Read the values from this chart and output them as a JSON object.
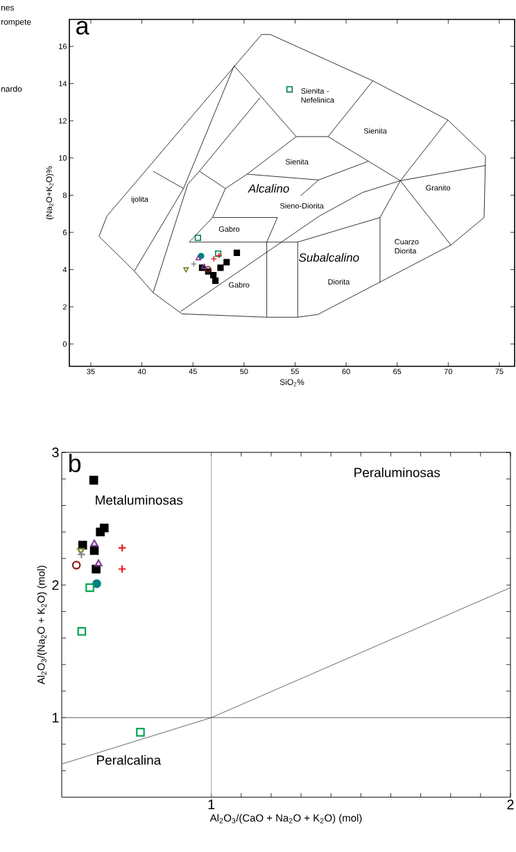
{
  "chart_data": [
    {
      "type": "scatter",
      "title": "a",
      "xlabel": "SiO$_{2}$%",
      "ylabel": "(Na$_{2}$O+K$_{2}$O)%",
      "xlim": [
        32.9,
        76.5
      ],
      "ylim": [
        -1.2,
        17.45
      ],
      "xticks": [
        35,
        40,
        45,
        50,
        55,
        60,
        65,
        70,
        75
      ],
      "yticks": [
        0,
        2,
        4,
        6,
        8,
        10,
        12,
        14,
        16
      ],
      "series": [
        {
          "type": "line",
          "color": "#000000",
          "x": [
            35.81,
            36.58,
            51.72,
            52.57,
            62.62,
            69.97,
            73.65,
            null,
            73.51,
            73.65,
            null,
            35.81,
            39.26,
            41.1,
            43.93,
            52.23,
            55.26,
            57.24,
            70.26,
            73.51,
            null,
            39.26,
            44.08,
            49.03,
            null,
            41.1,
            44.5,
            45.63,
            51.58,
            null,
            41.1,
            44.08,
            null,
            45.63,
            48.18,
            null,
            49.03,
            55.12,
            58.23,
            62.62,
            null,
            58.23,
            65.31,
            69.97,
            null,
            65.31,
            73.65,
            null,
            65.31,
            70.26,
            null,
            43.79,
            57.38,
            61.62,
            65.31,
            null,
            44.64,
            55.26,
            63.32,
            65.31,
            null,
            63.32,
            63.32,
            null,
            52.23,
            52.23,
            null,
            55.26,
            55.26,
            null,
            46.92,
            53.27,
            null,
            52.23,
            53.27,
            null,
            44.64,
            46.92,
            48.18,
            50.3,
            55.12,
            null,
            50.3,
            57.32,
            62.19,
            null,
            55.54,
            57.32
          ],
          "values": [
            5.79,
            6.88,
            16.64,
            16.64,
            14.15,
            12.04,
            10.1,
            null,
            6.8,
            10.1,
            null,
            5.79,
            3.92,
            2.76,
            1.62,
            1.44,
            1.44,
            1.59,
            5.32,
            6.8,
            null,
            3.92,
            8.36,
            14.96,
            null,
            2.76,
            8.59,
            9.29,
            13.25,
            null,
            9.29,
            8.36,
            null,
            9.29,
            8.36,
            null,
            14.96,
            11.15,
            11.15,
            14.15,
            null,
            11.15,
            8.78,
            12.04,
            null,
            8.78,
            9.6,
            null,
            8.78,
            5.32,
            null,
            1.75,
            6.88,
            8.15,
            8.78,
            null,
            5.48,
            5.48,
            6.8,
            8.78,
            null,
            3.3,
            6.8,
            null,
            1.44,
            5.48,
            null,
            1.44,
            5.48,
            null,
            6.8,
            6.8,
            null,
            5.48,
            6.8,
            null,
            5.48,
            6.8,
            8.36,
            9.13,
            11.15,
            null,
            9.13,
            8.82,
            9.83,
            null,
            7.97,
            8.82
          ]
        },
        {
          "color": "#00804a",
          "marker": "square_open",
          "x": [
            54.46,
            45.49,
            47.47
          ],
          "values": [
            13.69,
            5.71,
            4.86
          ]
        },
        {
          "color": "#000000",
          "marker": "square",
          "x": [
            49.3,
            48.3,
            47.7,
            47.2,
            47.0,
            46.5,
            45.9
          ],
          "values": [
            4.9,
            4.4,
            4.1,
            3.4,
            3.7,
            3.9,
            4.1
          ]
        },
        {
          "color": "#ed1c24",
          "marker": "cross",
          "x": [
            47.05,
            47.57
          ],
          "values": [
            4.58,
            4.76
          ]
        },
        {
          "color": "#008080",
          "marker": "circle",
          "x": [
            45.8
          ],
          "values": [
            4.73
          ]
        },
        {
          "color": "#8b1a1a",
          "marker": "circle_open",
          "x": [
            46.48
          ],
          "values": [
            4.02
          ]
        },
        {
          "color": "#7f3f98",
          "marker": "triangle_open",
          "x": [
            45.53,
            46.09
          ],
          "values": [
            4.6,
            4.14
          ]
        },
        {
          "color": "#8c8c8c",
          "marker": "cross",
          "x": [
            45.08
          ],
          "values": [
            4.3
          ]
        },
        {
          "color": "#7f7f2a",
          "marker": "triangle_down_open",
          "x": [
            44.33
          ],
          "values": [
            4.02
          ]
        }
      ],
      "annotations": [
        "Sienita - Nefelinica",
        "Sienita",
        "Sienita",
        "Alcalino",
        "Sieno-Diorita",
        "Granito",
        "ijolita",
        "Gabro",
        "Cuarzo Diorita",
        "Subalcalino",
        "Diorita",
        "Gabro",
        "nes",
        "rompete",
        "nardo"
      ]
    },
    {
      "type": "scatter",
      "title": "b",
      "xlabel": "Al$_{2}$O$_{3}$/(CaO + Na$_{2}$O + K$_{2}$O) (mol)",
      "ylabel": "Al$_{2}$O$_{3}$/(Na$_{2}$O + K$_{2}$O) (mol)",
      "xlim": [
        0.5,
        2.0
      ],
      "ylim": [
        0.4,
        3
      ],
      "xticks": [
        1,
        {
          "value": 1.1,
          "label": null
        },
        {
          "value": 1.2,
          "label": null
        },
        {
          "value": 1.3,
          "label": null
        },
        {
          "value": 1.4,
          "label": null
        },
        {
          "value": 1.5,
          "label": null
        },
        {
          "value": 1.6,
          "label": null
        },
        {
          "value": 1.7,
          "label": null
        },
        {
          "value": 1.8,
          "label": null
        },
        {
          "value": 1.9,
          "label": null
        },
        2
      ],
      "yticks": [
        {
          "value": 0.6,
          "label": null
        },
        {
          "value": 0.8,
          "label": null
        },
        1,
        {
          "value": 1.2,
          "label": null
        },
        {
          "value": 1.4,
          "label": null
        },
        {
          "value": 1.6,
          "label": null
        },
        {
          "value": 1.8,
          "label": null
        },
        2,
        {
          "value": 2.2,
          "label": null
        },
        {
          "value": 2.4,
          "label": null
        },
        {
          "value": 2.6,
          "label": null
        },
        {
          "value": 2.8,
          "label": null
        },
        3
      ],
      "ref_lines": [
        {
          "axis": "x",
          "value": 1,
          "color": "#8c8c8c"
        },
        {
          "axis": "y",
          "value": 1,
          "color": "#404040"
        }
      ],
      "series": [
        {
          "type": "line",
          "color": "#404040",
          "x": [
            0.5,
            1,
            2.0
          ],
          "values": [
            0.65,
            1,
            1.98
          ]
        },
        {
          "color": "#000000",
          "marker": "square",
          "x": [
            0.607,
            0.642,
            0.629,
            0.57,
            0.609,
            0.615
          ],
          "values": [
            2.79,
            2.43,
            2.4,
            2.3,
            2.26,
            2.12
          ]
        },
        {
          "color": "#7f3f98",
          "marker": "triangle_open",
          "x": [
            0.609,
            0.623
          ],
          "values": [
            2.31,
            2.16
          ]
        },
        {
          "color": "#ed1c24",
          "marker": "cross",
          "x": [
            0.702,
            0.702
          ],
          "values": [
            2.28,
            2.12
          ]
        },
        {
          "color": "#7f7f2a",
          "marker": "triangle_down_open",
          "x": [
            0.564
          ],
          "values": [
            2.26
          ]
        },
        {
          "color": "#8c8c8c",
          "marker": "cross",
          "x": [
            0.566
          ],
          "values": [
            2.23
          ]
        },
        {
          "color": "#8b1a1a",
          "marker": "circle_open",
          "x": [
            0.549
          ],
          "values": [
            2.15
          ]
        },
        {
          "color": "#008080",
          "marker": "circle",
          "x": [
            0.617
          ],
          "values": [
            2.01
          ]
        },
        {
          "color": "#00a651",
          "marker": "square_open",
          "x": [
            0.594,
            0.567,
            0.763
          ],
          "values": [
            1.98,
            1.65,
            0.89
          ]
        }
      ],
      "annotations": [
        "Peraluminosas",
        "Metaluminosas",
        "Peralcalina"
      ]
    }
  ]
}
